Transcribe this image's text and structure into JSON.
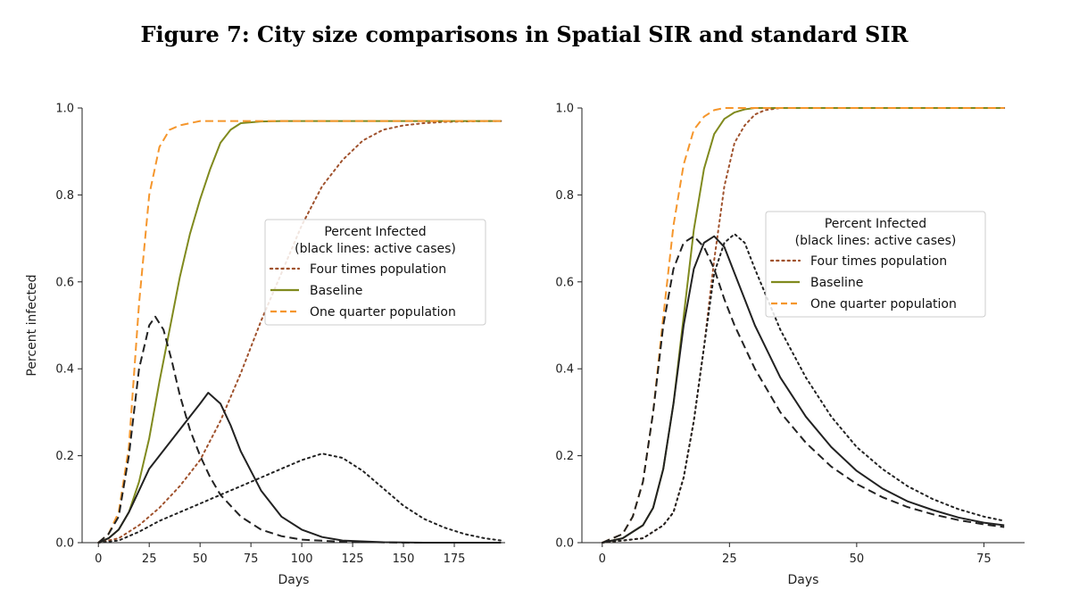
{
  "figure_title": "Figure 7: City size comparisons in Spatial SIR and standard SIR",
  "colors": {
    "four": "#a0522d",
    "baseline": "#808a1e",
    "quarter": "#f5962c",
    "active": "#222222",
    "axis": "#222222"
  },
  "chart_data": [
    {
      "type": "line",
      "panel": "left",
      "title": "",
      "xlabel": "Days",
      "ylabel": "Percent infected",
      "xlim": [
        -8,
        200
      ],
      "ylim": [
        0,
        1.0
      ],
      "xticks": [
        0,
        25,
        50,
        75,
        100,
        125,
        150,
        175
      ],
      "yticks": [
        0.0,
        0.2,
        0.4,
        0.6,
        0.8,
        1.0
      ],
      "xtick_labels": [
        "0",
        "25",
        "50",
        "75",
        "100",
        "125",
        "150",
        "175"
      ],
      "ytick_labels": [
        "0.0",
        "0.2",
        "0.4",
        "0.6",
        "0.8",
        "1.0"
      ],
      "legend": {
        "placement": "center-right",
        "title_lines": [
          "Percent Infected",
          "(black lines: active cases)"
        ],
        "entries": [
          {
            "label": "Four times population",
            "style": "dotted",
            "color_key": "four"
          },
          {
            "label": "Baseline",
            "style": "solid",
            "color_key": "baseline"
          },
          {
            "label": "One quarter population",
            "style": "dashed",
            "color_key": "quarter"
          }
        ]
      },
      "series": [
        {
          "name": "Four times population (cumulative)",
          "style": "dotted",
          "color_key": "four",
          "x": [
            0,
            10,
            20,
            30,
            40,
            50,
            60,
            70,
            80,
            90,
            100,
            110,
            120,
            130,
            140,
            150,
            160,
            170,
            180,
            190,
            198
          ],
          "y": [
            0.0,
            0.01,
            0.04,
            0.08,
            0.13,
            0.19,
            0.28,
            0.39,
            0.51,
            0.62,
            0.73,
            0.82,
            0.88,
            0.925,
            0.95,
            0.96,
            0.965,
            0.968,
            0.969,
            0.97,
            0.97
          ]
        },
        {
          "name": "Baseline (cumulative)",
          "style": "solid",
          "color_key": "baseline",
          "x": [
            0,
            5,
            10,
            15,
            20,
            25,
            30,
            35,
            40,
            45,
            50,
            55,
            60,
            65,
            70,
            80,
            90,
            100,
            120,
            150,
            198
          ],
          "y": [
            0.0,
            0.01,
            0.03,
            0.07,
            0.14,
            0.24,
            0.37,
            0.49,
            0.61,
            0.71,
            0.79,
            0.86,
            0.92,
            0.95,
            0.965,
            0.969,
            0.97,
            0.97,
            0.97,
            0.97,
            0.97
          ]
        },
        {
          "name": "One quarter population (cumulative)",
          "style": "dashed",
          "color_key": "quarter",
          "x": [
            0,
            5,
            10,
            15,
            20,
            25,
            30,
            35,
            40,
            45,
            50,
            60,
            80,
            100,
            150,
            198
          ],
          "y": [
            0.0,
            0.02,
            0.07,
            0.22,
            0.55,
            0.8,
            0.91,
            0.95,
            0.96,
            0.965,
            0.97,
            0.97,
            0.97,
            0.97,
            0.97,
            0.97
          ]
        },
        {
          "name": "Four times population (active)",
          "style": "dotted",
          "color_key": "active",
          "x": [
            0,
            10,
            20,
            30,
            40,
            50,
            60,
            70,
            80,
            90,
            100,
            110,
            120,
            130,
            140,
            150,
            160,
            170,
            180,
            190,
            198
          ],
          "y": [
            0.0,
            0.005,
            0.025,
            0.05,
            0.07,
            0.09,
            0.11,
            0.13,
            0.15,
            0.17,
            0.19,
            0.205,
            0.195,
            0.165,
            0.125,
            0.085,
            0.055,
            0.035,
            0.02,
            0.01,
            0.005
          ]
        },
        {
          "name": "Baseline (active)",
          "style": "solid",
          "color_key": "active",
          "x": [
            0,
            5,
            10,
            15,
            20,
            25,
            30,
            35,
            40,
            45,
            50,
            54,
            60,
            65,
            70,
            80,
            90,
            100,
            110,
            120,
            140,
            160,
            198
          ],
          "y": [
            0.0,
            0.01,
            0.03,
            0.07,
            0.12,
            0.17,
            0.2,
            0.23,
            0.26,
            0.29,
            0.32,
            0.345,
            0.32,
            0.27,
            0.21,
            0.12,
            0.06,
            0.03,
            0.013,
            0.005,
            0.001,
            0.0,
            0.0
          ]
        },
        {
          "name": "One quarter population (active)",
          "style": "dashed",
          "color_key": "active",
          "x": [
            0,
            5,
            10,
            15,
            20,
            25,
            28,
            32,
            36,
            40,
            45,
            50,
            55,
            60,
            70,
            80,
            90,
            100,
            120,
            150,
            198
          ],
          "y": [
            0.0,
            0.02,
            0.06,
            0.2,
            0.4,
            0.5,
            0.52,
            0.49,
            0.42,
            0.34,
            0.26,
            0.2,
            0.15,
            0.11,
            0.06,
            0.03,
            0.015,
            0.007,
            0.002,
            0.0,
            0.0
          ]
        }
      ]
    },
    {
      "type": "line",
      "panel": "right",
      "title": "",
      "xlabel": "Days",
      "ylabel": "",
      "xlim": [
        -4,
        83
      ],
      "ylim": [
        0,
        1.0
      ],
      "xticks": [
        0,
        25,
        50,
        75
      ],
      "yticks": [
        0.0,
        0.2,
        0.4,
        0.6,
        0.8,
        1.0
      ],
      "xtick_labels": [
        "0",
        "25",
        "50",
        "75"
      ],
      "ytick_labels": [
        "0.0",
        "0.2",
        "0.4",
        "0.6",
        "0.8",
        "1.0"
      ],
      "legend": {
        "placement": "center-right",
        "title_lines": [
          "Percent Infected",
          "(black lines: active cases)"
        ],
        "entries": [
          {
            "label": "Four times population",
            "style": "dotted",
            "color_key": "four"
          },
          {
            "label": "Baseline",
            "style": "solid",
            "color_key": "baseline"
          },
          {
            "label": "One quarter population",
            "style": "dashed",
            "color_key": "quarter"
          }
        ]
      },
      "series": [
        {
          "name": "Four times population (cumulative)",
          "style": "dotted",
          "color_key": "four",
          "x": [
            0,
            4,
            8,
            12,
            14,
            16,
            18,
            20,
            22,
            24,
            26,
            28,
            30,
            32,
            35,
            40,
            50,
            60,
            79
          ],
          "y": [
            0.0,
            0.005,
            0.01,
            0.04,
            0.07,
            0.15,
            0.28,
            0.45,
            0.65,
            0.82,
            0.92,
            0.96,
            0.985,
            0.995,
            1.0,
            1.0,
            1.0,
            1.0,
            1.0
          ]
        },
        {
          "name": "Baseline (cumulative)",
          "style": "solid",
          "color_key": "baseline",
          "x": [
            0,
            4,
            8,
            10,
            12,
            14,
            16,
            18,
            20,
            22,
            24,
            26,
            28,
            30,
            35,
            40,
            50,
            79
          ],
          "y": [
            0.0,
            0.01,
            0.04,
            0.08,
            0.17,
            0.32,
            0.52,
            0.72,
            0.86,
            0.94,
            0.975,
            0.99,
            0.997,
            1.0,
            1.0,
            1.0,
            1.0,
            1.0
          ]
        },
        {
          "name": "One quarter population (cumulative)",
          "style": "dashed",
          "color_key": "quarter",
          "x": [
            0,
            4,
            6,
            8,
            10,
            12,
            14,
            16,
            18,
            20,
            22,
            24,
            26,
            30,
            40,
            50,
            79
          ],
          "y": [
            0.0,
            0.02,
            0.06,
            0.14,
            0.3,
            0.52,
            0.73,
            0.87,
            0.95,
            0.98,
            0.995,
            1.0,
            1.0,
            1.0,
            1.0,
            1.0,
            1.0
          ]
        },
        {
          "name": "Four times population (active)",
          "style": "dotted",
          "color_key": "active",
          "x": [
            0,
            4,
            8,
            12,
            14,
            16,
            18,
            20,
            22,
            24,
            26,
            28,
            30,
            35,
            40,
            45,
            50,
            55,
            60,
            65,
            70,
            75,
            79
          ],
          "y": [
            0.0,
            0.005,
            0.01,
            0.04,
            0.07,
            0.15,
            0.28,
            0.45,
            0.62,
            0.69,
            0.71,
            0.69,
            0.63,
            0.49,
            0.38,
            0.29,
            0.22,
            0.17,
            0.13,
            0.1,
            0.077,
            0.06,
            0.05
          ]
        },
        {
          "name": "Baseline (active)",
          "style": "solid",
          "color_key": "active",
          "x": [
            0,
            4,
            8,
            10,
            12,
            14,
            16,
            18,
            20,
            22,
            24,
            26,
            28,
            30,
            35,
            40,
            45,
            50,
            55,
            60,
            65,
            70,
            75,
            79
          ],
          "y": [
            0.0,
            0.01,
            0.04,
            0.08,
            0.17,
            0.32,
            0.5,
            0.63,
            0.69,
            0.705,
            0.68,
            0.62,
            0.56,
            0.5,
            0.38,
            0.29,
            0.22,
            0.165,
            0.125,
            0.095,
            0.075,
            0.058,
            0.046,
            0.04
          ]
        },
        {
          "name": "One quarter population (active)",
          "style": "dashed",
          "color_key": "active",
          "x": [
            0,
            4,
            6,
            8,
            10,
            12,
            14,
            16,
            18,
            20,
            22,
            24,
            26,
            30,
            35,
            40,
            45,
            50,
            55,
            60,
            65,
            70,
            75,
            79
          ],
          "y": [
            0.0,
            0.02,
            0.06,
            0.14,
            0.3,
            0.5,
            0.63,
            0.69,
            0.705,
            0.68,
            0.63,
            0.56,
            0.5,
            0.4,
            0.3,
            0.23,
            0.175,
            0.135,
            0.105,
            0.082,
            0.065,
            0.052,
            0.042,
            0.036
          ]
        }
      ]
    }
  ]
}
